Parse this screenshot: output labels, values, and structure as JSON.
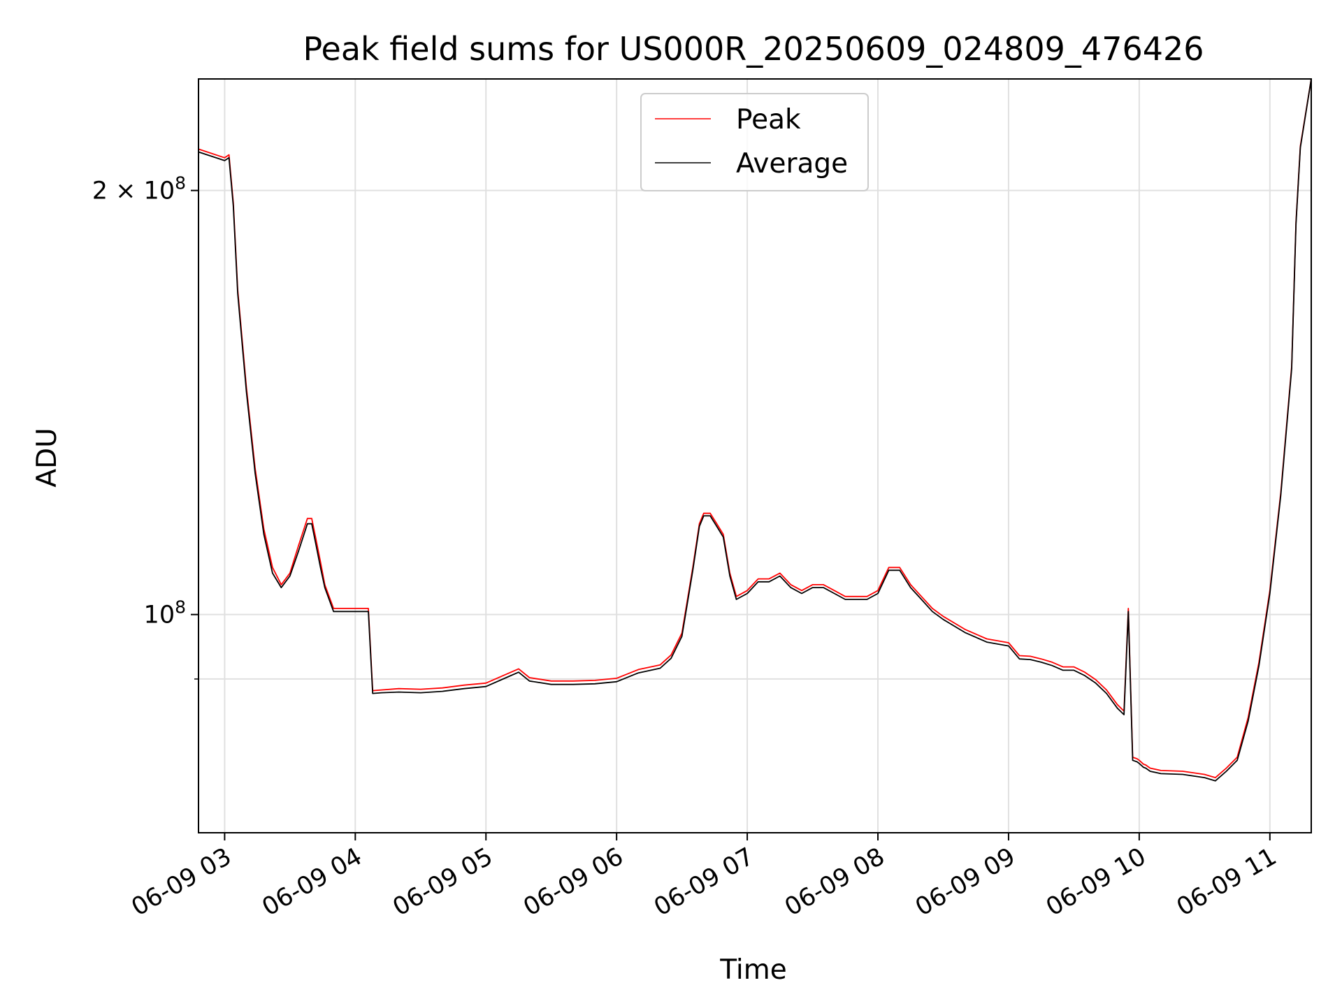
{
  "chart_data": {
    "type": "line",
    "title": "Peak field sums for US000R_20250609_024809_476426",
    "xlabel": "Time",
    "ylabel": "ADU",
    "x_unit": "time (2025-06-09)",
    "xlim": [
      "2025-06-09 02:48",
      "2025-06-09 11:19"
    ],
    "ylim": [
      70000000,
      240000000
    ],
    "yscale": "log",
    "grid": true,
    "legend_position": "top-center",
    "x_ticks": [
      "06-09 03",
      "06-09 04",
      "06-09 05",
      "06-09 06",
      "06-09 07",
      "06-09 08",
      "06-09 09",
      "06-09 10",
      "06-09 11"
    ],
    "y_ticks": [
      {
        "value": 100000000,
        "label": "10^8"
      },
      {
        "value": 200000000,
        "label": "2 × 10^8"
      }
    ],
    "y_minor_ticks": [
      90000000
    ],
    "series": [
      {
        "name": "Peak",
        "color": "#ff0000",
        "x": [
          "02:48",
          "03:00",
          "03:02",
          "03:04",
          "03:06",
          "03:10",
          "03:14",
          "03:18",
          "03:22",
          "03:26",
          "03:30",
          "03:34",
          "03:38",
          "03:40",
          "03:42",
          "03:44",
          "03:46",
          "03:50",
          "03:54",
          "03:58",
          "04:02",
          "04:06",
          "04:08",
          "04:12",
          "04:20",
          "04:30",
          "04:40",
          "04:50",
          "05:00",
          "05:10",
          "05:15",
          "05:20",
          "05:30",
          "05:40",
          "05:50",
          "06:00",
          "06:10",
          "06:20",
          "06:25",
          "06:30",
          "06:35",
          "06:38",
          "06:40",
          "06:43",
          "06:46",
          "06:49",
          "06:52",
          "06:55",
          "07:00",
          "07:05",
          "07:10",
          "07:15",
          "07:20",
          "07:25",
          "07:30",
          "07:35",
          "07:40",
          "07:45",
          "07:50",
          "07:55",
          "08:00",
          "08:05",
          "08:10",
          "08:15",
          "08:20",
          "08:25",
          "08:30",
          "08:40",
          "08:50",
          "09:00",
          "09:05",
          "09:10",
          "09:15",
          "09:20",
          "09:25",
          "09:30",
          "09:35",
          "09:40",
          "09:45",
          "09:50",
          "09:53",
          "09:55",
          "09:57",
          "09:59",
          "10:00",
          "10:02",
          "10:03",
          "10:05",
          "10:10",
          "10:20",
          "10:30",
          "10:35",
          "10:40",
          "10:45",
          "10:50",
          "10:55",
          "11:00",
          "11:05",
          "11:10",
          "11:12",
          "11:14",
          "11:19"
        ],
        "y": [
          214,
          211,
          212,
          196,
          170,
          145,
          127,
          115,
          108,
          105,
          107,
          112,
          117,
          117,
          113,
          109,
          105,
          101,
          101,
          101,
          101,
          101,
          88.3,
          88.4,
          88.6,
          88.5,
          88.7,
          89.1,
          89.4,
          90.8,
          91.5,
          90.2,
          89.7,
          89.7,
          89.8,
          90.1,
          91.4,
          92.1,
          93.6,
          97.0,
          108,
          116,
          118,
          118,
          116,
          114,
          107,
          103,
          104,
          106,
          106,
          107,
          105,
          104,
          105,
          105,
          104,
          103,
          103,
          103,
          104,
          108,
          108,
          105,
          103,
          101,
          99.7,
          97.6,
          96.1,
          95.5,
          93.5,
          93.4,
          93.0,
          92.5,
          91.8,
          91.8,
          91.0,
          89.9,
          88.4,
          86.3,
          85.4,
          101,
          79.2,
          79.0,
          78.8,
          78.3,
          78.2,
          77.8,
          77.5,
          77.4,
          77.0,
          76.6,
          77.8,
          79.2,
          84.5,
          92.5,
          104,
          122,
          150,
          190,
          215,
          240
        ]
      },
      {
        "name": "Average",
        "color": "#000000",
        "x": [
          "02:48",
          "03:00",
          "03:02",
          "03:04",
          "03:06",
          "03:10",
          "03:14",
          "03:18",
          "03:22",
          "03:26",
          "03:30",
          "03:34",
          "03:38",
          "03:40",
          "03:42",
          "03:44",
          "03:46",
          "03:50",
          "03:54",
          "03:58",
          "04:02",
          "04:06",
          "04:08",
          "04:12",
          "04:20",
          "04:30",
          "04:40",
          "04:50",
          "05:00",
          "05:10",
          "05:15",
          "05:20",
          "05:30",
          "05:40",
          "05:50",
          "06:00",
          "06:10",
          "06:20",
          "06:25",
          "06:30",
          "06:35",
          "06:38",
          "06:40",
          "06:43",
          "06:46",
          "06:49",
          "06:52",
          "06:55",
          "07:00",
          "07:05",
          "07:10",
          "07:15",
          "07:20",
          "07:25",
          "07:30",
          "07:35",
          "07:40",
          "07:45",
          "07:50",
          "07:55",
          "08:00",
          "08:05",
          "08:10",
          "08:15",
          "08:20",
          "08:25",
          "08:30",
          "08:40",
          "08:50",
          "09:00",
          "09:05",
          "09:10",
          "09:15",
          "09:20",
          "09:25",
          "09:30",
          "09:35",
          "09:40",
          "09:45",
          "09:50",
          "09:53",
          "09:55",
          "09:57",
          "09:59",
          "10:00",
          "10:02",
          "10:03",
          "10:05",
          "10:10",
          "10:20",
          "10:30",
          "10:35",
          "10:40",
          "10:45",
          "10:50",
          "10:55",
          "11:00",
          "11:05",
          "11:10",
          "11:12",
          "11:14",
          "11:19"
        ],
        "y": [
          213,
          210,
          211,
          195,
          169,
          144,
          126,
          114,
          107,
          104.5,
          106.5,
          111,
          116,
          116,
          112,
          108,
          104.5,
          100.5,
          100.5,
          100.5,
          100.5,
          100.5,
          87.9,
          88.0,
          88.1,
          88.0,
          88.2,
          88.6,
          88.9,
          90.3,
          91.0,
          89.7,
          89.2,
          89.2,
          89.3,
          89.6,
          90.9,
          91.6,
          93.1,
          96.5,
          107.5,
          115.5,
          117.5,
          117.5,
          115.5,
          113.5,
          106.5,
          102.5,
          103.5,
          105.5,
          105.5,
          106.5,
          104.5,
          103.5,
          104.5,
          104.5,
          103.5,
          102.5,
          102.5,
          102.5,
          103.5,
          107.5,
          107.5,
          104.5,
          102.5,
          100.5,
          99.2,
          97.1,
          95.6,
          95.0,
          93.0,
          92.9,
          92.5,
          92.0,
          91.3,
          91.3,
          90.5,
          89.4,
          87.9,
          85.8,
          84.9,
          100.5,
          78.8,
          78.6,
          78.4,
          77.9,
          77.8,
          77.4,
          77.1,
          77.0,
          76.6,
          76.2,
          77.4,
          78.8,
          84.0,
          92.0,
          103.5,
          121.5,
          149.5,
          189.5,
          214.5,
          240
        ]
      }
    ]
  }
}
